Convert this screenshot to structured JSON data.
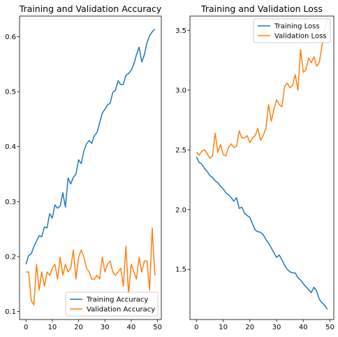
{
  "chart_data": [
    {
      "type": "line",
      "title": "Training and Validation Accuracy",
      "xlabel": "",
      "ylabel": "",
      "xlim": [
        -2.45,
        51.45
      ],
      "ylim": [
        0.0855,
        0.6375
      ],
      "xticks": [
        0,
        10,
        20,
        30,
        40,
        50
      ],
      "yticks": [
        0.1,
        0.2,
        0.3,
        0.4,
        0.5,
        0.6
      ],
      "ytick_labels": [
        "0.1",
        "0.2",
        "0.3",
        "0.4",
        "0.5",
        "0.6"
      ],
      "grid": false,
      "legend_position": "lower-right",
      "x": [
        0,
        1,
        2,
        3,
        4,
        5,
        6,
        7,
        8,
        9,
        10,
        11,
        12,
        13,
        14,
        15,
        16,
        17,
        18,
        19,
        20,
        21,
        22,
        23,
        24,
        25,
        26,
        27,
        28,
        29,
        30,
        31,
        32,
        33,
        34,
        35,
        36,
        37,
        38,
        39,
        40,
        41,
        42,
        43,
        44,
        45,
        46,
        47,
        48,
        49
      ],
      "series": [
        {
          "name": "Training Accuracy",
          "color": "#1f77b4",
          "values": [
            0.186,
            0.202,
            0.205,
            0.218,
            0.228,
            0.238,
            0.236,
            0.254,
            0.252,
            0.278,
            0.27,
            0.294,
            0.288,
            0.292,
            0.316,
            0.29,
            0.343,
            0.332,
            0.344,
            0.35,
            0.376,
            0.369,
            0.392,
            0.405,
            0.411,
            0.406,
            0.42,
            0.426,
            0.443,
            0.461,
            0.468,
            0.476,
            0.479,
            0.499,
            0.502,
            0.52,
            0.513,
            0.513,
            0.53,
            0.533,
            0.539,
            0.55,
            0.567,
            0.581,
            0.554,
            0.567,
            0.589,
            0.602,
            0.609,
            0.614
          ]
        },
        {
          "name": "Validation Accuracy",
          "color": "#ff7f0e",
          "values": [
            0.172,
            0.172,
            0.12,
            0.112,
            0.186,
            0.139,
            0.172,
            0.146,
            0.172,
            0.166,
            0.179,
            0.186,
            0.159,
            0.199,
            0.166,
            0.186,
            0.172,
            0.179,
            0.212,
            0.159,
            0.199,
            0.212,
            0.199,
            0.179,
            0.172,
            0.159,
            0.159,
            0.166,
            0.159,
            0.199,
            0.172,
            0.186,
            0.192,
            0.172,
            0.166,
            0.172,
            0.179,
            0.146,
            0.219,
            0.132,
            0.186,
            0.172,
            0.159,
            0.199,
            0.172,
            0.192,
            0.192,
            0.139,
            0.252,
            0.166
          ]
        }
      ]
    },
    {
      "type": "line",
      "title": "Training and Validation Loss",
      "xlabel": "",
      "ylabel": "",
      "xlim": [
        -2.45,
        51.45
      ],
      "ylim": [
        1.08,
        3.62
      ],
      "xticks": [
        0,
        10,
        20,
        30,
        40,
        50
      ],
      "yticks": [
        1.5,
        2.0,
        2.5,
        3.0,
        3.5
      ],
      "ytick_labels": [
        "1.5",
        "2.0",
        "2.5",
        "3.0",
        "3.5"
      ],
      "grid": false,
      "legend_position": "upper-right",
      "x": [
        0,
        1,
        2,
        3,
        4,
        5,
        6,
        7,
        8,
        9,
        10,
        11,
        12,
        13,
        14,
        15,
        16,
        17,
        18,
        19,
        20,
        21,
        22,
        23,
        24,
        25,
        26,
        27,
        28,
        29,
        30,
        31,
        32,
        33,
        34,
        35,
        36,
        37,
        38,
        39,
        40,
        41,
        42,
        43,
        44,
        45,
        46,
        47,
        48,
        49
      ],
      "series": [
        {
          "name": "Training Loss",
          "color": "#1f77b4",
          "values": [
            2.44,
            2.395,
            2.38,
            2.345,
            2.32,
            2.285,
            2.27,
            2.24,
            2.225,
            2.195,
            2.175,
            2.14,
            2.125,
            2.1,
            2.07,
            2.1,
            2.01,
            2.02,
            1.97,
            1.95,
            1.935,
            1.88,
            1.83,
            1.815,
            1.81,
            1.79,
            1.75,
            1.72,
            1.68,
            1.64,
            1.6,
            1.62,
            1.58,
            1.535,
            1.5,
            1.48,
            1.47,
            1.47,
            1.43,
            1.41,
            1.38,
            1.355,
            1.33,
            1.305,
            1.35,
            1.32,
            1.25,
            1.22,
            1.2,
            1.165
          ]
        },
        {
          "name": "Validation Loss",
          "color": "#ff7f0e",
          "values": [
            2.48,
            2.455,
            2.49,
            2.5,
            2.47,
            2.43,
            2.45,
            2.64,
            2.48,
            2.545,
            2.46,
            2.45,
            2.52,
            2.55,
            2.52,
            2.53,
            2.66,
            2.6,
            2.6,
            2.62,
            2.56,
            2.6,
            2.62,
            2.68,
            2.58,
            2.62,
            2.68,
            2.88,
            2.74,
            2.84,
            2.92,
            2.88,
            2.86,
            3.03,
            3.06,
            3.02,
            3.04,
            3.13,
            3.0,
            3.34,
            3.15,
            3.17,
            3.27,
            3.23,
            3.28,
            3.2,
            3.23,
            3.37,
            3.49,
            3.6
          ]
        }
      ]
    }
  ]
}
